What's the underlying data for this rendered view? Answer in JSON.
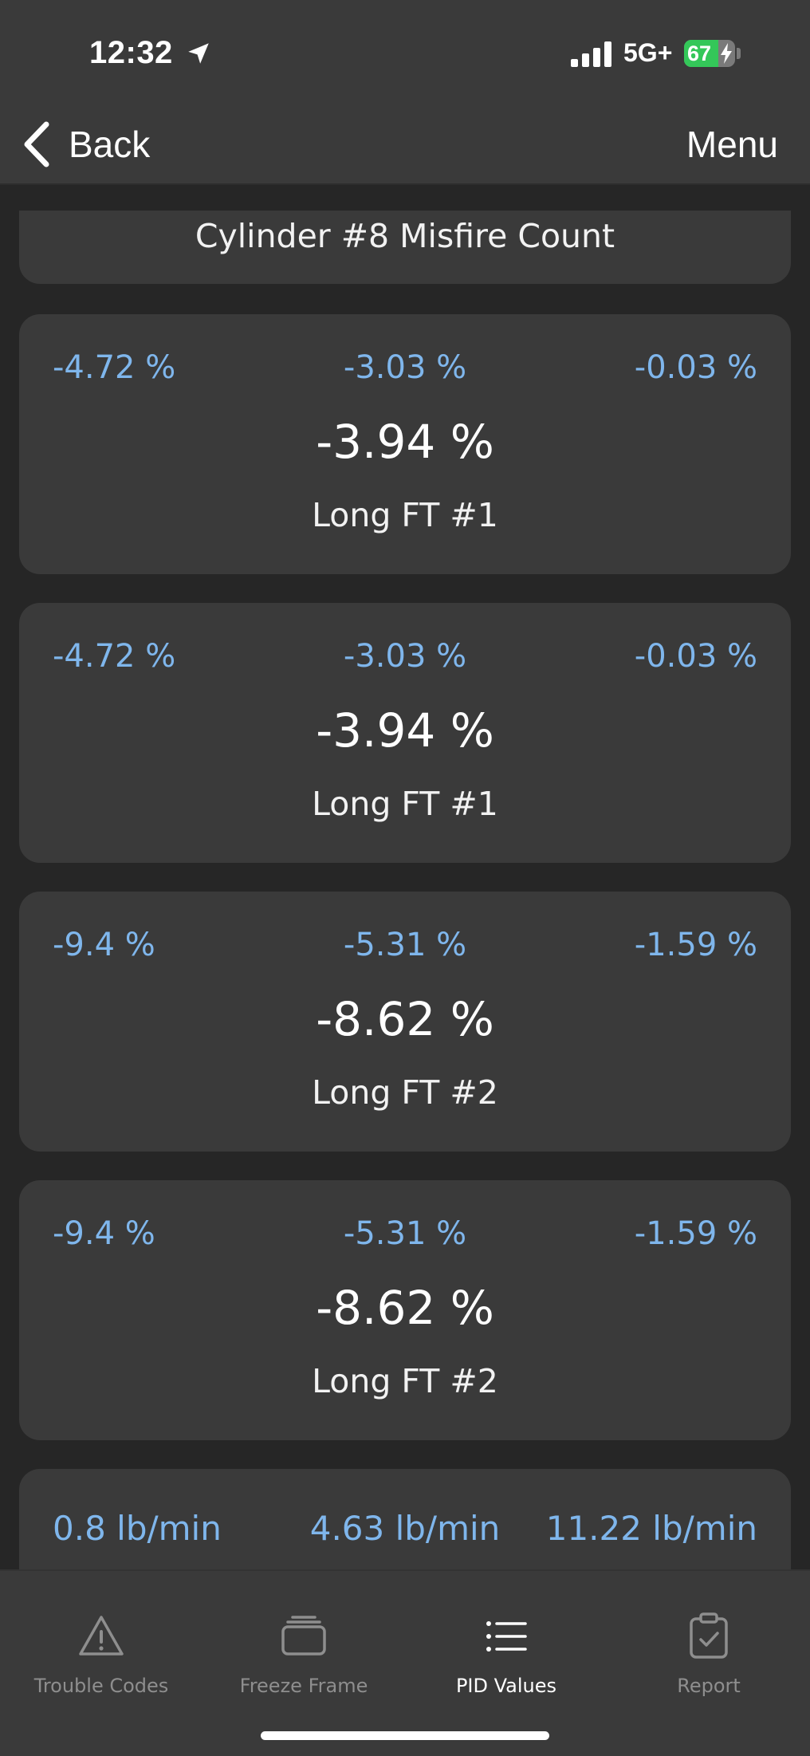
{
  "status_bar": {
    "time": "12:32",
    "network": "5G+",
    "battery_level": "67",
    "battery_fraction": 0.67,
    "icons": [
      "location-arrow-icon",
      "signal-bars-icon",
      "battery-charging-icon"
    ]
  },
  "nav": {
    "back_label": "Back",
    "menu_label": "Menu"
  },
  "pids": {
    "top_partial": {
      "name": "Cylinder #8 Misfire Count"
    },
    "cards": [
      {
        "min": "-4.72 %",
        "avg": "-3.03 %",
        "max": "-0.03 %",
        "current": "-3.94 %",
        "name": "Long FT #1"
      },
      {
        "min": "-4.72 %",
        "avg": "-3.03 %",
        "max": "-0.03 %",
        "current": "-3.94 %",
        "name": "Long FT #1"
      },
      {
        "min": "-9.4 %",
        "avg": "-5.31 %",
        "max": "-1.59 %",
        "current": "-8.62 %",
        "name": "Long FT #2"
      },
      {
        "min": "-9.4 %",
        "avg": "-5.31 %",
        "max": "-1.59 %",
        "current": "-8.62 %",
        "name": "Long FT #2"
      }
    ],
    "bottom_partial": {
      "min": "0.8 lb/min",
      "avg": "4.63 lb/min",
      "max": "11.22 lb/min"
    }
  },
  "tabbar": {
    "tabs": [
      {
        "label": "Trouble Codes",
        "icon": "warning-triangle-icon",
        "active": false
      },
      {
        "label": "Freeze Frame",
        "icon": "stacked-frames-icon",
        "active": false
      },
      {
        "label": "PID Values",
        "icon": "list-icon",
        "active": true
      },
      {
        "label": "Report",
        "icon": "clipboard-check-icon",
        "active": false
      }
    ]
  },
  "colors": {
    "background": "#262626",
    "card": "#3a3a3a",
    "accent_value": "#7fb6ec",
    "battery_green": "#34c759"
  }
}
